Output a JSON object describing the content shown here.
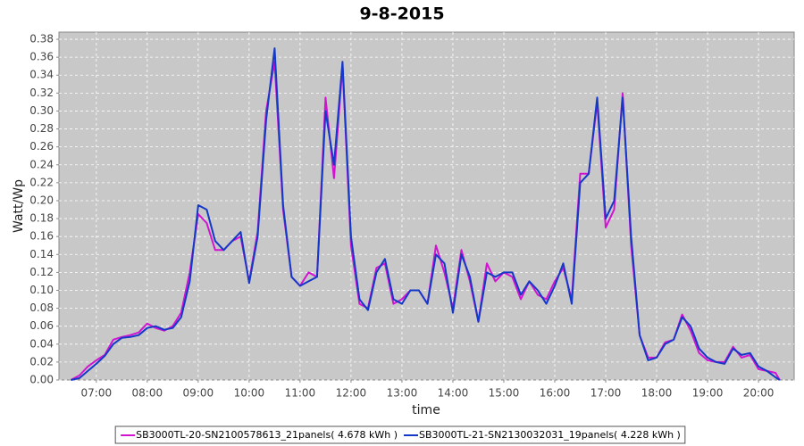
{
  "chart_data": {
    "type": "line",
    "title": "9-8-2015",
    "x_label": "time",
    "y_label": "Watt/Wp",
    "x": [
      "06:30",
      "06:40",
      "06:50",
      "07:00",
      "07:10",
      "07:20",
      "07:30",
      "07:40",
      "07:50",
      "08:00",
      "08:10",
      "08:20",
      "08:30",
      "08:40",
      "08:50",
      "09:00",
      "09:10",
      "09:20",
      "09:30",
      "09:40",
      "09:50",
      "10:00",
      "10:10",
      "10:20",
      "10:30",
      "10:40",
      "10:50",
      "11:00",
      "11:10",
      "11:20",
      "11:30",
      "11:40",
      "11:50",
      "12:00",
      "12:10",
      "12:20",
      "12:30",
      "12:40",
      "12:50",
      "13:00",
      "13:10",
      "13:20",
      "13:30",
      "13:40",
      "13:50",
      "14:00",
      "14:10",
      "14:20",
      "14:30",
      "14:40",
      "14:50",
      "15:00",
      "15:10",
      "15:20",
      "15:30",
      "15:40",
      "15:50",
      "16:00",
      "16:10",
      "16:20",
      "16:30",
      "16:40",
      "16:50",
      "17:00",
      "17:10",
      "17:20",
      "17:30",
      "17:40",
      "17:50",
      "18:00",
      "18:10",
      "18:20",
      "18:30",
      "18:40",
      "18:50",
      "19:00",
      "19:10",
      "19:20",
      "19:30",
      "19:40",
      "19:50",
      "20:00",
      "20:10",
      "20:20",
      "20:25"
    ],
    "series": [
      {
        "name": "SB3000TL-20-SN2100578613_21panels( 4.678 kWh )",
        "color": "#d214d2",
        "values": [
          0,
          0.005,
          0.015,
          0.022,
          0.028,
          0.045,
          0.048,
          0.05,
          0.053,
          0.063,
          0.058,
          0.055,
          0.06,
          0.075,
          0.12,
          0.185,
          0.175,
          0.145,
          0.145,
          0.155,
          0.16,
          0.11,
          0.165,
          0.3,
          0.355,
          0.19,
          0.115,
          0.105,
          0.12,
          0.115,
          0.315,
          0.225,
          0.35,
          0.15,
          0.085,
          0.08,
          0.125,
          0.13,
          0.085,
          0.09,
          0.1,
          0.1,
          0.085,
          0.15,
          0.12,
          0.08,
          0.145,
          0.11,
          0.065,
          0.13,
          0.11,
          0.12,
          0.115,
          0.09,
          0.11,
          0.095,
          0.09,
          0.11,
          0.125,
          0.09,
          0.23,
          0.23,
          0.31,
          0.17,
          0.19,
          0.32,
          0.15,
          0.05,
          0.025,
          0.025,
          0.042,
          0.045,
          0.073,
          0.055,
          0.03,
          0.022,
          0.02,
          0.02,
          0.037,
          0.025,
          0.028,
          0.012,
          0.01,
          0.008,
          0
        ]
      },
      {
        "name": "SB3000TL-21-SN2130032031_19panels( 4.228 kWh )",
        "color": "#1438c8",
        "values": [
          0,
          0.002,
          0.01,
          0.018,
          0.027,
          0.04,
          0.047,
          0.048,
          0.05,
          0.058,
          0.06,
          0.056,
          0.058,
          0.07,
          0.11,
          0.195,
          0.19,
          0.155,
          0.145,
          0.155,
          0.165,
          0.108,
          0.16,
          0.29,
          0.37,
          0.195,
          0.115,
          0.105,
          0.11,
          0.115,
          0.3,
          0.24,
          0.355,
          0.16,
          0.09,
          0.078,
          0.12,
          0.135,
          0.09,
          0.085,
          0.1,
          0.1,
          0.085,
          0.14,
          0.13,
          0.075,
          0.14,
          0.115,
          0.065,
          0.12,
          0.115,
          0.12,
          0.12,
          0.095,
          0.11,
          0.1,
          0.085,
          0.105,
          0.13,
          0.085,
          0.22,
          0.23,
          0.315,
          0.18,
          0.2,
          0.315,
          0.16,
          0.05,
          0.022,
          0.025,
          0.04,
          0.045,
          0.07,
          0.06,
          0.035,
          0.025,
          0.02,
          0.018,
          0.035,
          0.028,
          0.03,
          0.015,
          0.01,
          0.003,
          0
        ]
      }
    ],
    "xlim": [
      "06:16",
      "20:42"
    ],
    "xticks": [
      "07:00",
      "08:00",
      "09:00",
      "10:00",
      "11:00",
      "12:00",
      "13:00",
      "14:00",
      "15:00",
      "16:00",
      "17:00",
      "18:00",
      "19:00",
      "20:00"
    ],
    "ylim": [
      0,
      0.388
    ],
    "yticks": [
      {
        "value": 0,
        "label": "0.00"
      },
      {
        "value": 0.02,
        "label": "0.02"
      },
      {
        "value": 0.04,
        "label": "0.04"
      },
      {
        "value": 0.06,
        "label": "0.06"
      },
      {
        "value": 0.08,
        "label": "0.08"
      },
      {
        "value": 0.1,
        "label": "0.10"
      },
      {
        "value": 0.12,
        "label": "0.12"
      },
      {
        "value": 0.14,
        "label": "0.14"
      },
      {
        "value": 0.16,
        "label": "0.16"
      },
      {
        "value": 0.18,
        "label": "0.18"
      },
      {
        "value": 0.2,
        "label": "0.20"
      },
      {
        "value": 0.22,
        "label": "0.22"
      },
      {
        "value": 0.24,
        "label": "0.24"
      },
      {
        "value": 0.26,
        "label": "0.26"
      },
      {
        "value": 0.28,
        "label": "0.28"
      },
      {
        "value": 0.3,
        "label": "0.30"
      },
      {
        "value": 0.32,
        "label": "0.32"
      },
      {
        "value": 0.34,
        "label": "0.34"
      },
      {
        "value": 0.36,
        "label": "0.36"
      },
      {
        "value": 0.38,
        "label": "0.38"
      }
    ],
    "grid": true,
    "legend": "bottom"
  }
}
